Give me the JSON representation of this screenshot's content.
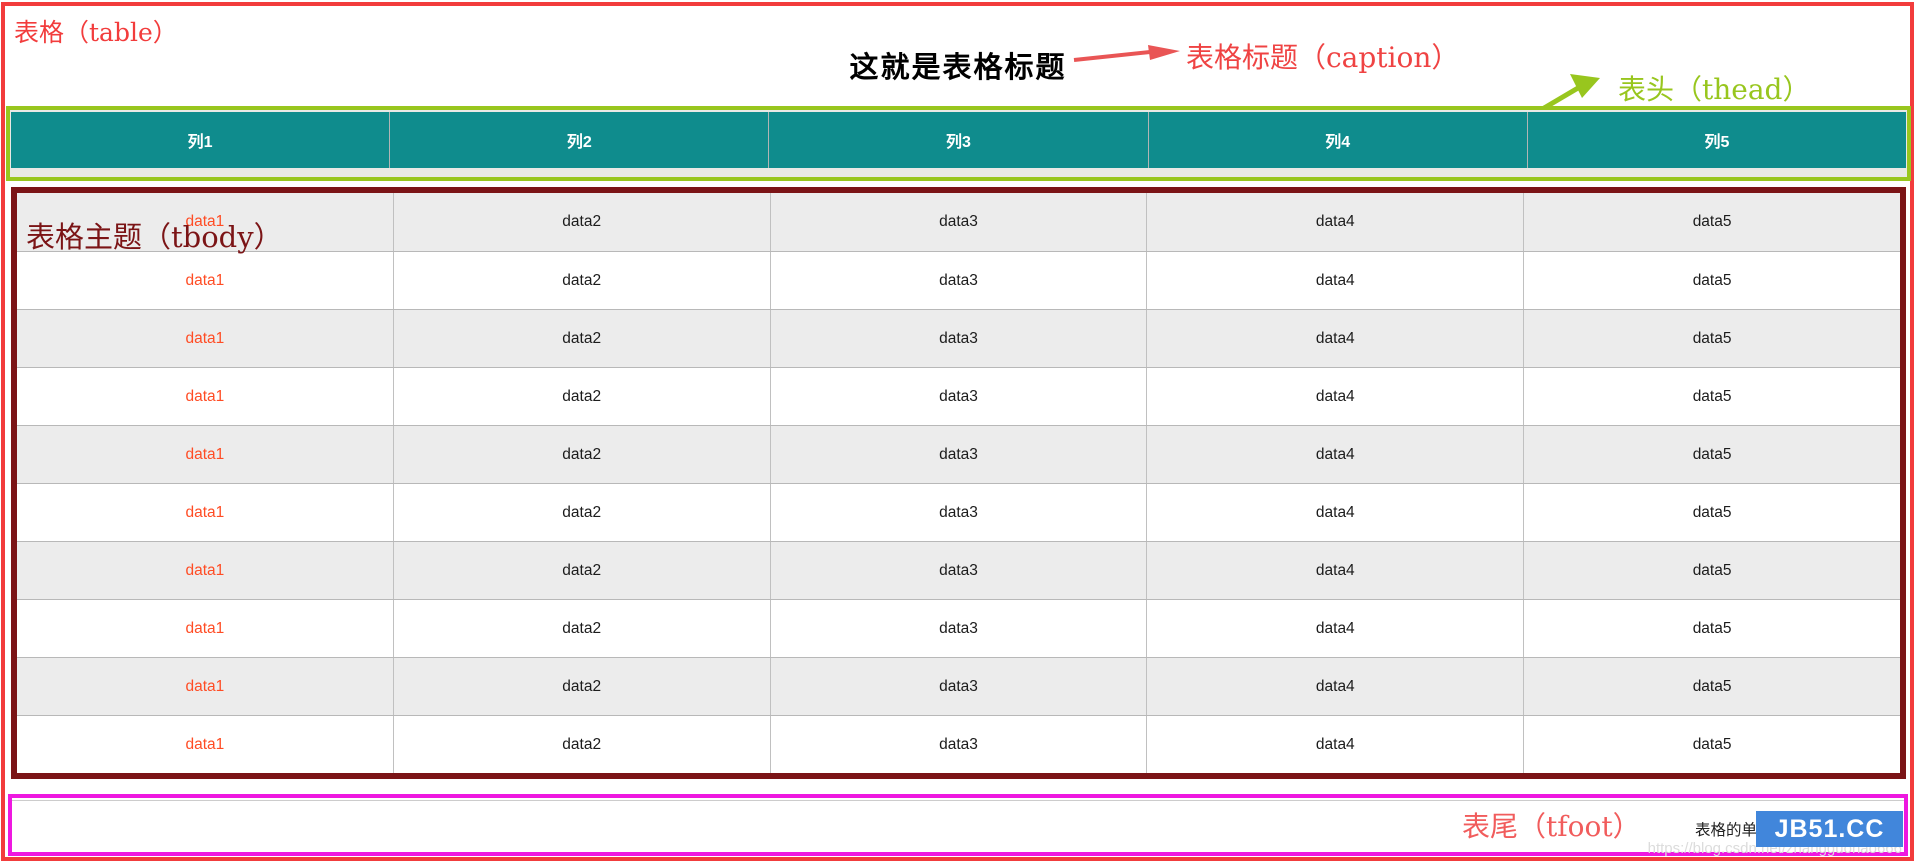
{
  "annotations": {
    "table_label": "表格（table）",
    "caption_label": "表格标题（caption）",
    "thead_label": "表头（thead）",
    "tbody_label": "表格主题（tbody）",
    "tfoot_label": "表尾（tfoot）"
  },
  "caption": "这就是表格标题",
  "thead": {
    "columns": [
      "列1",
      "列2",
      "列3",
      "列4",
      "列5"
    ]
  },
  "tbody": {
    "rows": [
      [
        "data1",
        "data2",
        "data3",
        "data4",
        "data5"
      ],
      [
        "data1",
        "data2",
        "data3",
        "data4",
        "data5"
      ],
      [
        "data1",
        "data2",
        "data3",
        "data4",
        "data5"
      ],
      [
        "data1",
        "data2",
        "data3",
        "data4",
        "data5"
      ],
      [
        "data1",
        "data2",
        "data3",
        "data4",
        "data5"
      ],
      [
        "data1",
        "data2",
        "data3",
        "data4",
        "data5"
      ],
      [
        "data1",
        "data2",
        "data3",
        "data4",
        "data5"
      ],
      [
        "data1",
        "data2",
        "data3",
        "data4",
        "data5"
      ],
      [
        "data1",
        "data2",
        "data3",
        "data4",
        "data5"
      ],
      [
        "data1",
        "data2",
        "data3",
        "data4",
        "data5"
      ]
    ]
  },
  "tfoot": {
    "text": "表格的单",
    "badge": "JB51.CC",
    "watermark": "https://blog.csdn.net/zhangguohao666"
  },
  "colors": {
    "table_border_red": "#f23c3c",
    "thead_border_green": "#98c61e",
    "header_teal": "#0f8c8d",
    "tbody_border_maroon": "#7b1416",
    "tfoot_border_magenta": "#ee18e0",
    "col1_data_orange": "#ff4c24",
    "badge_blue": "#4186db",
    "stripe_gray": "#ececec"
  }
}
